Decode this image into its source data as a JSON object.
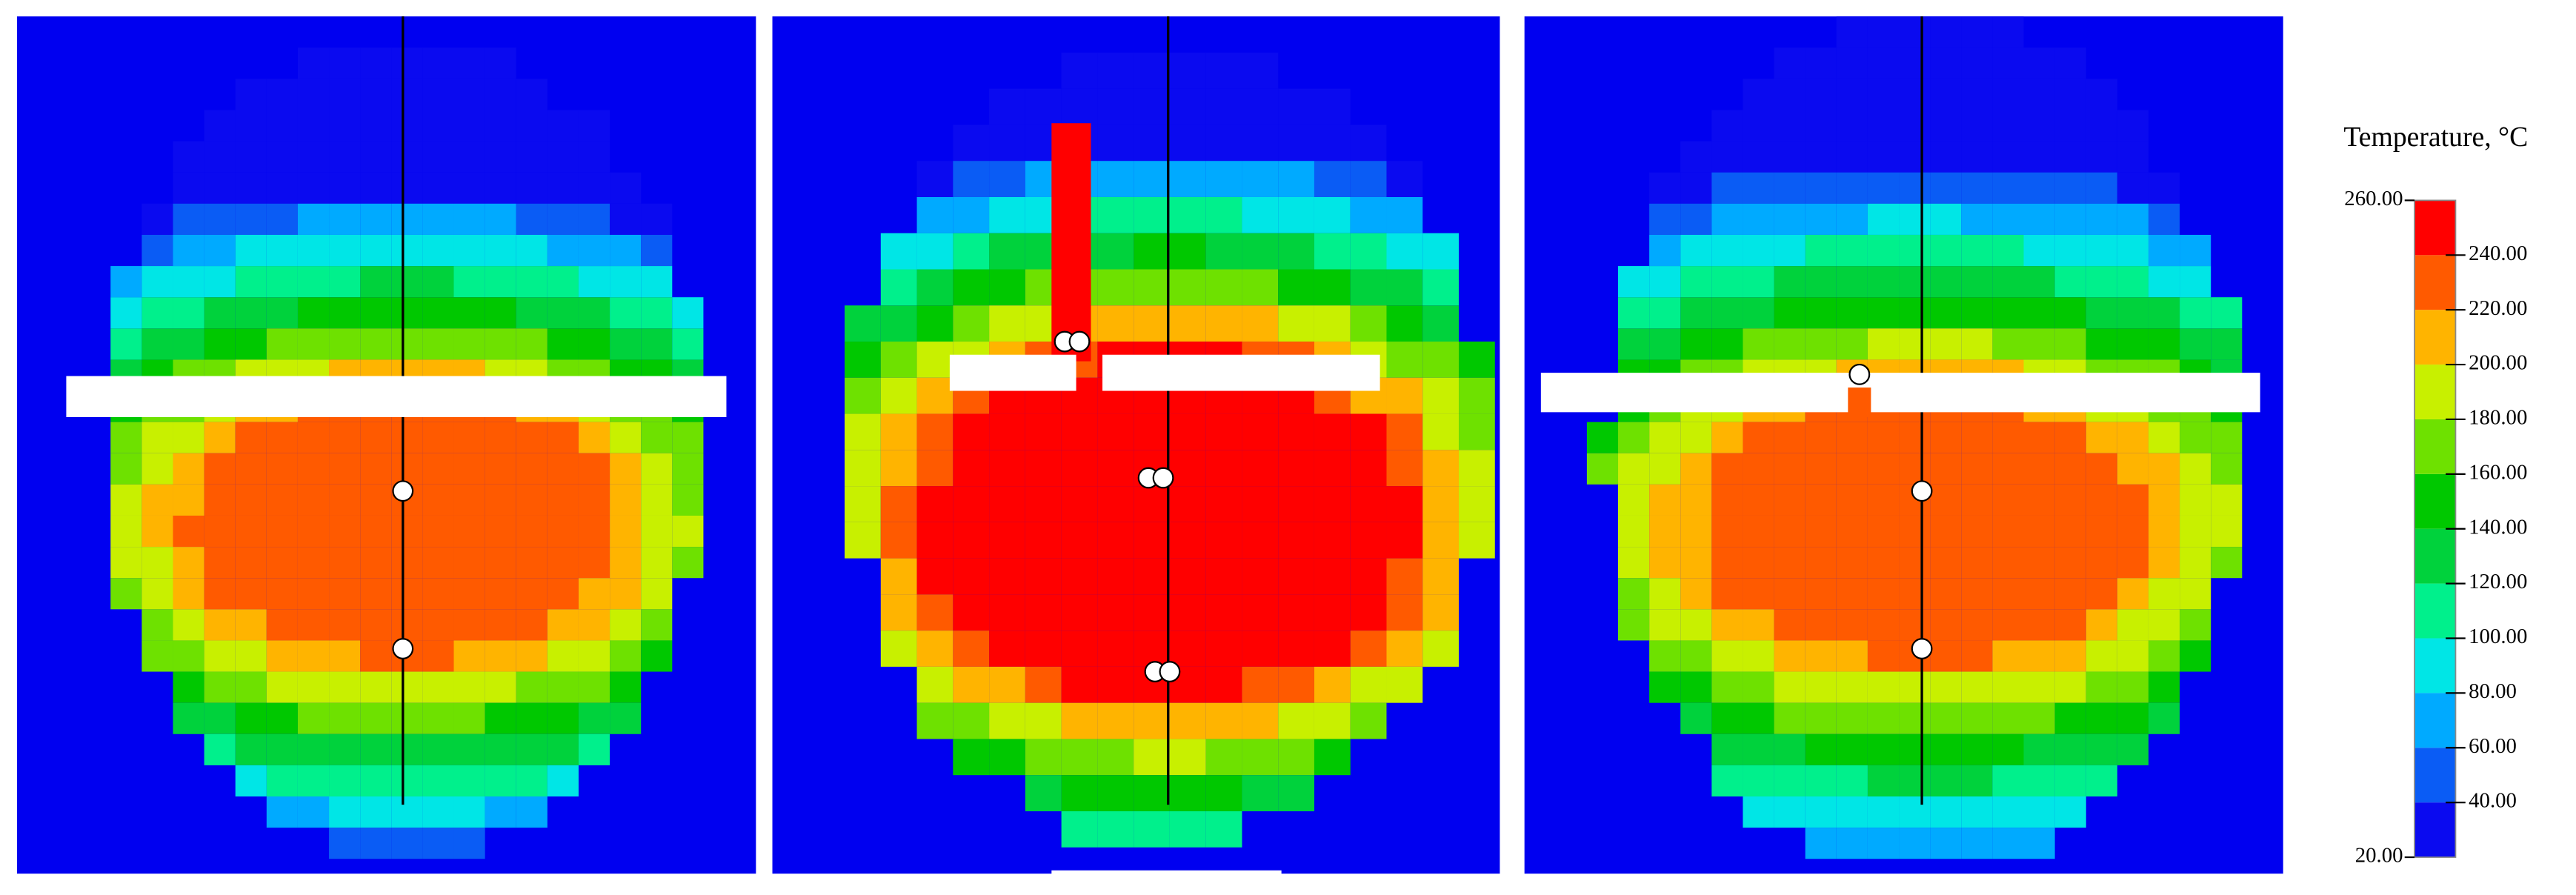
{
  "chart_data": {
    "type": "colorbar",
    "title": "Temperature, °C",
    "range": [
      20,
      260
    ],
    "ticks": [
      {
        "value": 260,
        "label": "260.00"
      },
      {
        "value": 240,
        "label": "240.00"
      },
      {
        "value": 220,
        "label": "220.00"
      },
      {
        "value": 200,
        "label": "200.00"
      },
      {
        "value": 180,
        "label": "180.00"
      },
      {
        "value": 160,
        "label": "160.00"
      },
      {
        "value": 140,
        "label": "140.00"
      },
      {
        "value": 120,
        "label": "120.00"
      },
      {
        "value": 100,
        "label": "100.00"
      },
      {
        "value": 80,
        "label": "80.00"
      },
      {
        "value": 60,
        "label": "60.00"
      },
      {
        "value": 40,
        "label": "40.00"
      },
      {
        "value": 20,
        "label": "20.00"
      }
    ],
    "colors": [
      "#0a0af0",
      "#0a5cf5",
      "#00aaff",
      "#00e6e6",
      "#00f08c",
      "#00d23c",
      "#00c800",
      "#6ee100",
      "#c8f000",
      "#ffb400",
      "#ff5a00",
      "#ff0000"
    ]
  }
}
